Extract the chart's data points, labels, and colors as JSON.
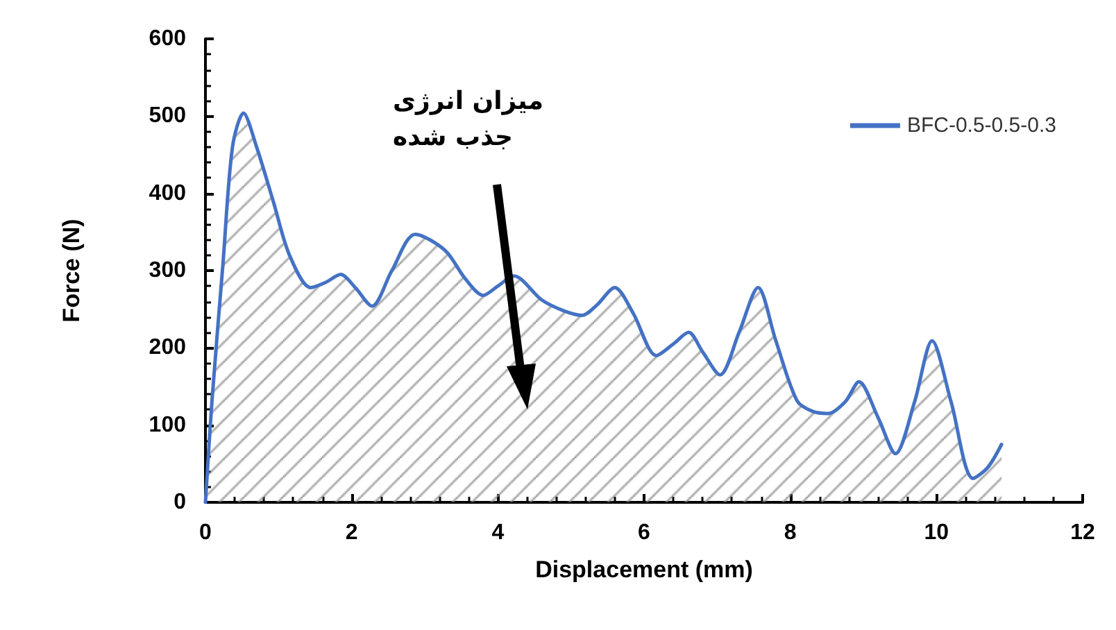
{
  "chart_data": {
    "type": "area",
    "xlabel": "Displacement (mm)",
    "ylabel": "Force (N)",
    "annotations": [
      "میزان انرژی\nجذب شده"
    ],
    "series": [
      {
        "name": "BFC-0.5-0.5-0.3",
        "color": "#4472c4",
        "x": [
          0,
          0.09,
          0.24,
          0.37,
          0.52,
          0.7,
          0.93,
          1.15,
          1.44,
          1.65,
          1.85,
          2.05,
          2.28,
          2.55,
          2.87,
          3.28,
          3.55,
          3.8,
          4.0,
          4.22,
          4.6,
          4.9,
          5.15,
          5.35,
          5.6,
          5.85,
          6.17,
          6.4,
          6.61,
          6.8,
          7.04,
          7.3,
          7.56,
          7.8,
          8.09,
          8.3,
          8.52,
          8.75,
          8.94,
          9.2,
          9.44,
          9.7,
          9.94,
          10.2,
          10.5,
          10.7,
          10.89
        ],
        "values": [
          0,
          132,
          309,
          460,
          504,
          460,
          389,
          320,
          278,
          285,
          295,
          278,
          254,
          300,
          347,
          326,
          290,
          268,
          280,
          293,
          262,
          248,
          242,
          255,
          278,
          245,
          190,
          205,
          220,
          195,
          165,
          220,
          278,
          210,
          132,
          118,
          115,
          130,
          156,
          110,
          63,
          130,
          209,
          130,
          31,
          45,
          75
        ]
      }
    ],
    "xlim": [
      0,
      12
    ],
    "xticks": [
      0,
      2,
      4,
      6,
      8,
      10,
      12
    ],
    "ylim": [
      0,
      600
    ],
    "yticks": [
      0,
      100,
      200,
      300,
      400,
      500,
      600
    ],
    "legend": "top right",
    "grid": false,
    "marker": "none",
    "line_style": "solid"
  }
}
